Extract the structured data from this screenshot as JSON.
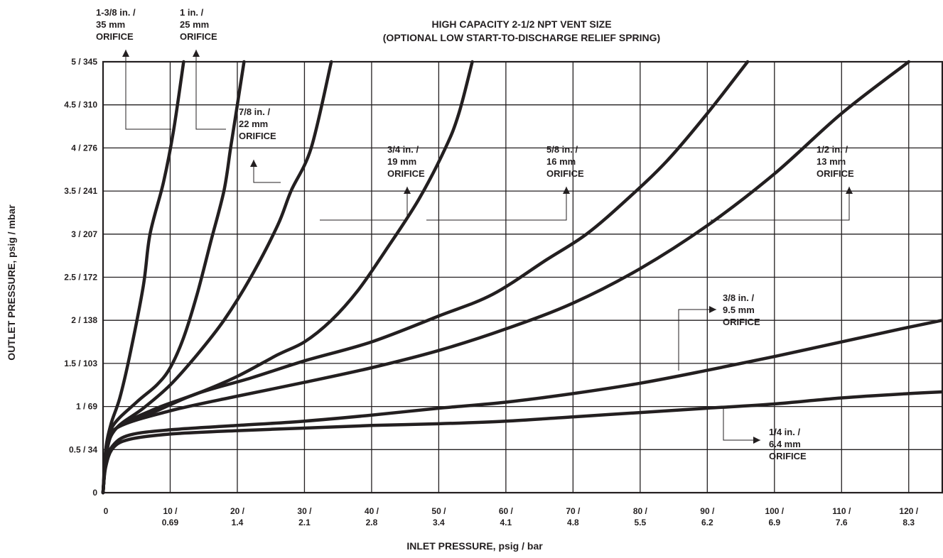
{
  "chart_data": {
    "type": "line",
    "title": "HIGH CAPACITY 2-1/2 NPT VENT SIZE",
    "subtitle": "(OPTIONAL LOW START-TO-DISCHARGE RELIEF SPRING)",
    "xlabel": "INLET PRESSURE, psig / bar",
    "ylabel": "OUTLET PRESSURE, psig / mbar",
    "xlim": [
      0,
      125
    ],
    "ylim": [
      0,
      5
    ],
    "grid": true,
    "x_ticks": [
      {
        "value": 0,
        "line1": "0",
        "line2": ""
      },
      {
        "value": 10,
        "line1": "10 /",
        "line2": "0.69"
      },
      {
        "value": 20,
        "line1": "20 /",
        "line2": "1.4"
      },
      {
        "value": 30,
        "line1": "30 /",
        "line2": "2.1"
      },
      {
        "value": 40,
        "line1": "40 /",
        "line2": "2.8"
      },
      {
        "value": 50,
        "line1": "50 /",
        "line2": "3.4"
      },
      {
        "value": 60,
        "line1": "60 /",
        "line2": "4.1"
      },
      {
        "value": 70,
        "line1": "70 /",
        "line2": "4.8"
      },
      {
        "value": 80,
        "line1": "80 /",
        "line2": "5.5"
      },
      {
        "value": 90,
        "line1": "90 /",
        "line2": "6.2"
      },
      {
        "value": 100,
        "line1": "100 /",
        "line2": "6.9"
      },
      {
        "value": 110,
        "line1": "110 /",
        "line2": "7.6"
      },
      {
        "value": 120,
        "line1": "120 /",
        "line2": "8.3"
      }
    ],
    "y_ticks": [
      {
        "value": 0,
        "label": "0"
      },
      {
        "value": 0.5,
        "label": "0.5 / 34"
      },
      {
        "value": 1,
        "label": "1 / 69"
      },
      {
        "value": 1.5,
        "label": "1.5 / 103"
      },
      {
        "value": 2,
        "label": "2 / 138"
      },
      {
        "value": 2.5,
        "label": "2.5 / 172"
      },
      {
        "value": 3,
        "label": "3 / 207"
      },
      {
        "value": 3.5,
        "label": "3.5 / 241"
      },
      {
        "value": 4,
        "label": "4 / 276"
      },
      {
        "value": 4.5,
        "label": "4.5 / 310"
      },
      {
        "value": 5,
        "label": "5 / 345"
      }
    ],
    "series": [
      {
        "name": "1-3/8 in. / 35 mm ORIFICE",
        "points": [
          [
            0,
            0
          ],
          [
            0.4,
            0.5
          ],
          [
            1.2,
            0.8
          ],
          [
            2.5,
            1.1
          ],
          [
            4,
            1.6
          ],
          [
            6,
            2.4
          ],
          [
            7,
            3.0
          ],
          [
            9,
            3.6
          ],
          [
            10.5,
            4.2
          ],
          [
            12,
            5.0
          ]
        ]
      },
      {
        "name": "1 in. / 25 mm ORIFICE",
        "points": [
          [
            0,
            0
          ],
          [
            0.5,
            0.5
          ],
          [
            1.5,
            0.78
          ],
          [
            5,
            1.05
          ],
          [
            8,
            1.25
          ],
          [
            10,
            1.45
          ],
          [
            12,
            1.8
          ],
          [
            14,
            2.3
          ],
          [
            16,
            2.9
          ],
          [
            18,
            3.5
          ],
          [
            19,
            4.0
          ],
          [
            20,
            4.5
          ],
          [
            21,
            5.0
          ]
        ]
      },
      {
        "name": "7/8 in. / 22 mm ORIFICE",
        "points": [
          [
            0,
            0
          ],
          [
            0.6,
            0.5
          ],
          [
            2,
            0.75
          ],
          [
            6,
            0.98
          ],
          [
            10,
            1.25
          ],
          [
            14,
            1.6
          ],
          [
            18,
            2.0
          ],
          [
            22,
            2.5
          ],
          [
            26,
            3.1
          ],
          [
            28,
            3.5
          ],
          [
            31,
            4.0
          ],
          [
            34,
            5.0
          ]
        ]
      },
      {
        "name": "3/4 in. / 19 mm ORIFICE",
        "points": [
          [
            0,
            0
          ],
          [
            0.6,
            0.5
          ],
          [
            2,
            0.75
          ],
          [
            8,
            0.98
          ],
          [
            14,
            1.15
          ],
          [
            20,
            1.35
          ],
          [
            26,
            1.6
          ],
          [
            30,
            1.75
          ],
          [
            34,
            2.0
          ],
          [
            38,
            2.35
          ],
          [
            42,
            2.8
          ],
          [
            47,
            3.4
          ],
          [
            51,
            4.0
          ],
          [
            53,
            4.4
          ],
          [
            55,
            5.0
          ]
        ]
      },
      {
        "name": "5/8 in. / 16 mm ORIFICE",
        "points": [
          [
            0,
            0
          ],
          [
            0.6,
            0.5
          ],
          [
            2,
            0.75
          ],
          [
            8,
            0.95
          ],
          [
            14,
            1.15
          ],
          [
            22,
            1.33
          ],
          [
            30,
            1.53
          ],
          [
            40,
            1.75
          ],
          [
            50,
            2.05
          ],
          [
            58,
            2.3
          ],
          [
            66,
            2.7
          ],
          [
            72,
            3.0
          ],
          [
            78,
            3.4
          ],
          [
            84,
            3.85
          ],
          [
            90,
            4.4
          ],
          [
            96,
            5.0
          ]
        ]
      },
      {
        "name": "1/2 in. / 13 mm ORIFICE",
        "points": [
          [
            0,
            0
          ],
          [
            0.6,
            0.5
          ],
          [
            2,
            0.75
          ],
          [
            10,
            0.95
          ],
          [
            20,
            1.12
          ],
          [
            30,
            1.28
          ],
          [
            40,
            1.45
          ],
          [
            50,
            1.65
          ],
          [
            60,
            1.9
          ],
          [
            70,
            2.2
          ],
          [
            80,
            2.6
          ],
          [
            90,
            3.1
          ],
          [
            100,
            3.7
          ],
          [
            110,
            4.4
          ],
          [
            120,
            5.0
          ]
        ]
      },
      {
        "name": "3/8 in. / 9.5 mm ORIFICE",
        "points": [
          [
            0,
            0
          ],
          [
            0.4,
            0.35
          ],
          [
            1.5,
            0.55
          ],
          [
            4,
            0.67
          ],
          [
            10,
            0.73
          ],
          [
            20,
            0.78
          ],
          [
            30,
            0.83
          ],
          [
            40,
            0.9
          ],
          [
            50,
            0.98
          ],
          [
            60,
            1.05
          ],
          [
            70,
            1.15
          ],
          [
            80,
            1.27
          ],
          [
            90,
            1.42
          ],
          [
            100,
            1.58
          ],
          [
            110,
            1.75
          ],
          [
            120,
            1.92
          ],
          [
            125,
            2.0
          ]
        ]
      },
      {
        "name": "1/4 in. / 6.4 mm ORIFICE",
        "points": [
          [
            0,
            0
          ],
          [
            0.4,
            0.3
          ],
          [
            1.5,
            0.52
          ],
          [
            4,
            0.62
          ],
          [
            10,
            0.68
          ],
          [
            20,
            0.72
          ],
          [
            30,
            0.75
          ],
          [
            40,
            0.78
          ],
          [
            50,
            0.8
          ],
          [
            60,
            0.83
          ],
          [
            70,
            0.88
          ],
          [
            80,
            0.93
          ],
          [
            90,
            0.98
          ],
          [
            100,
            1.03
          ],
          [
            110,
            1.1
          ],
          [
            120,
            1.15
          ],
          [
            125,
            1.17
          ]
        ]
      }
    ],
    "annotations": [
      {
        "lines": [
          "1-3/8 in. /",
          "35 mm",
          "ORIFICE"
        ]
      },
      {
        "lines": [
          "1 in. /",
          "25 mm",
          "ORIFICE"
        ]
      },
      {
        "lines": [
          "7/8 in. /",
          "22 mm",
          "ORIFICE"
        ]
      },
      {
        "lines": [
          "3/4 in. /",
          "19 mm",
          "ORIFICE"
        ]
      },
      {
        "lines": [
          "5/8 in. /",
          "16 mm",
          "ORIFICE"
        ]
      },
      {
        "lines": [
          "1/2 in. /",
          "13 mm",
          "ORIFICE"
        ]
      },
      {
        "lines": [
          "3/8 in. /",
          "9.5 mm",
          "ORIFICE"
        ]
      },
      {
        "lines": [
          "1/4 in. /",
          "6.4 mm",
          "ORIFICE"
        ]
      }
    ]
  }
}
